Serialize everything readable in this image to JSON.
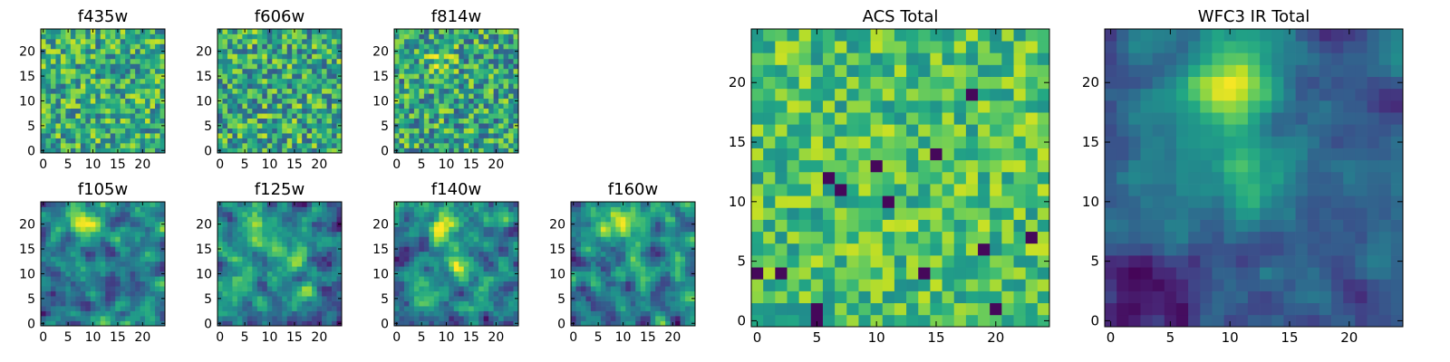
{
  "chart_data": {
    "type": "heatmap",
    "colormap": "viridis",
    "grid_size": 25,
    "panels": [
      {
        "id": "f435w",
        "title": "f435w",
        "xticks": [
          0,
          5,
          10,
          15,
          20
        ],
        "yticks": [
          0,
          5,
          10,
          15,
          20
        ],
        "xlim": [
          -0.5,
          24.5
        ],
        "ylim": [
          -0.5,
          24.5
        ],
        "pattern": "noise",
        "seed": 11,
        "base": 0.62,
        "noise": 0.3
      },
      {
        "id": "f606w",
        "title": "f606w",
        "xticks": [
          0,
          5,
          10,
          15,
          20
        ],
        "yticks": [
          0,
          5,
          10,
          15,
          20
        ],
        "xlim": [
          -0.5,
          24.5
        ],
        "ylim": [
          -0.5,
          24.5
        ],
        "pattern": "noise",
        "seed": 23,
        "base": 0.6,
        "noise": 0.32
      },
      {
        "id": "f814w",
        "title": "f814w",
        "xticks": [
          0,
          5,
          10,
          15,
          20
        ],
        "yticks": [
          0,
          5,
          10,
          15,
          20
        ],
        "xlim": [
          -0.5,
          24.5
        ],
        "ylim": [
          -0.5,
          24.5
        ],
        "pattern": "noise",
        "seed": 37,
        "base": 0.58,
        "noise": 0.32,
        "blobs": [
          {
            "cx": 9,
            "cy": 19,
            "sigma": 2.0,
            "amp": 0.25
          }
        ]
      },
      {
        "id": "f105w",
        "title": "f105w",
        "xticks": [
          0,
          5,
          10,
          15,
          20
        ],
        "yticks": [
          0,
          5,
          10,
          15,
          20
        ],
        "xlim": [
          -0.5,
          24.5
        ],
        "ylim": [
          -0.5,
          24.5
        ],
        "pattern": "smooth",
        "seed": 41,
        "base": 0.42,
        "noise": 0.3,
        "blobs": [
          {
            "cx": 9,
            "cy": 20,
            "sigma": 2.3,
            "amp": 0.55
          }
        ]
      },
      {
        "id": "f125w",
        "title": "f125w",
        "xticks": [
          0,
          5,
          10,
          15,
          20
        ],
        "yticks": [
          0,
          5,
          10,
          15,
          20
        ],
        "xlim": [
          -0.5,
          24.5
        ],
        "ylim": [
          -0.5,
          24.5
        ],
        "pattern": "smooth",
        "seed": 53,
        "base": 0.45,
        "noise": 0.3,
        "blobs": [
          {
            "cx": 10,
            "cy": 20,
            "sigma": 2.3,
            "amp": 0.45
          },
          {
            "cx": 15,
            "cy": 12,
            "sigma": 2.0,
            "amp": 0.3
          }
        ]
      },
      {
        "id": "f140w",
        "title": "f140w",
        "xticks": [
          0,
          5,
          10,
          15,
          20
        ],
        "yticks": [
          0,
          5,
          10,
          15,
          20
        ],
        "xlim": [
          -0.5,
          24.5
        ],
        "ylim": [
          -0.5,
          24.5
        ],
        "pattern": "smooth",
        "seed": 67,
        "base": 0.45,
        "noise": 0.3,
        "blobs": [
          {
            "cx": 9,
            "cy": 19,
            "sigma": 2.5,
            "amp": 0.45
          },
          {
            "cx": 12,
            "cy": 12,
            "sigma": 2.0,
            "amp": 0.3
          }
        ]
      },
      {
        "id": "f160w",
        "title": "f160w",
        "xticks": [
          0,
          5,
          10,
          15,
          20
        ],
        "yticks": [
          0,
          5,
          10,
          15,
          20
        ],
        "xlim": [
          -0.5,
          24.5
        ],
        "ylim": [
          -0.5,
          24.5
        ],
        "pattern": "smooth",
        "seed": 79,
        "base": 0.45,
        "noise": 0.3,
        "blobs": [
          {
            "cx": 9,
            "cy": 20,
            "sigma": 2.5,
            "amp": 0.5
          },
          {
            "cx": 13,
            "cy": 12,
            "sigma": 2.0,
            "amp": 0.25
          }
        ]
      },
      {
        "id": "acs_total",
        "title": "ACS Total",
        "xticks": [
          0,
          5,
          10,
          15,
          20
        ],
        "yticks": [
          0,
          5,
          10,
          15,
          20
        ],
        "xlim": [
          -0.5,
          24.5
        ],
        "ylim": [
          -0.5,
          24.5
        ],
        "pattern": "noise",
        "seed": 97,
        "base": 0.7,
        "noise": 0.22,
        "dark_cells": [
          [
            18,
            19
          ],
          [
            6,
            12
          ],
          [
            7,
            11
          ],
          [
            11,
            10
          ],
          [
            14,
            4
          ],
          [
            5,
            1
          ],
          [
            5,
            0
          ],
          [
            23,
            7
          ],
          [
            2,
            4
          ],
          [
            0,
            4
          ],
          [
            19,
            6
          ],
          [
            20,
            1
          ],
          [
            10,
            13
          ],
          [
            15,
            14
          ]
        ]
      },
      {
        "id": "wfc3_ir_total",
        "title": "WFC3 IR Total",
        "xticks": [
          0,
          5,
          10,
          15,
          20
        ],
        "yticks": [
          0,
          5,
          10,
          15,
          20
        ],
        "xlim": [
          -0.5,
          24.5
        ],
        "ylim": [
          -0.5,
          24.5
        ],
        "pattern": "smooth",
        "seed": 113,
        "base": 0.3,
        "noise": 0.14,
        "blobs": [
          {
            "cx": 10,
            "cy": 20,
            "sigma": 2.6,
            "amp": 0.7
          },
          {
            "cx": 12,
            "cy": 12,
            "sigma": 2.2,
            "amp": 0.3
          },
          {
            "cx": 5,
            "cy": 13,
            "sigma": 4.0,
            "amp": 0.15
          }
        ],
        "dark_corners": [
          {
            "cx": 3,
            "cy": 2,
            "sigma": 2.5,
            "amp": 0.35
          }
        ]
      }
    ]
  }
}
